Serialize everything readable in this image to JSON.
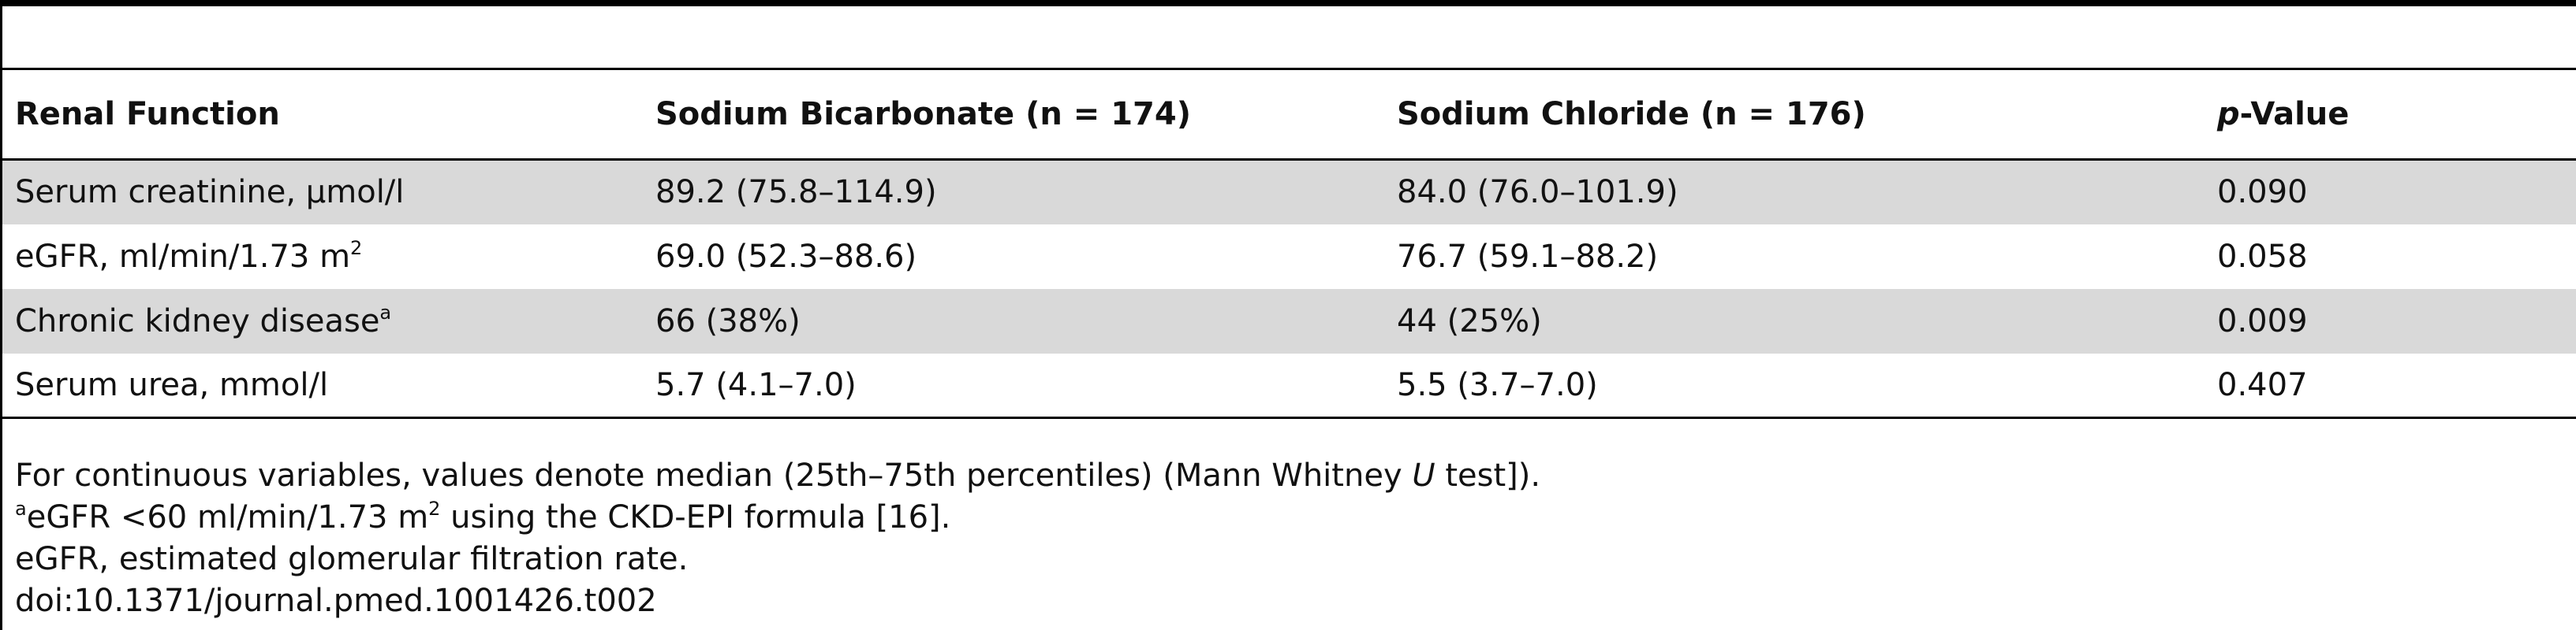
{
  "table": {
    "headers": {
      "renal_function": "Renal Function",
      "bicarbonate": "Sodium Bicarbonate (n = 174)",
      "chloride": "Sodium Chloride (n = 176)",
      "pvalue_prefix": "p",
      "pvalue_suffix": "-Value"
    },
    "rows": [
      {
        "label": "Serum creatinine, µmol/l",
        "label_sup": "",
        "bicarbonate": "89.2 (75.8–114.9)",
        "chloride": "84.0 (76.0–101.9)",
        "p": "0.090"
      },
      {
        "label": "eGFR, ml/min/1.73 m",
        "label_sup": "2",
        "bicarbonate": "69.0 (52.3–88.6)",
        "chloride": "76.7 (59.1–88.2)",
        "p": "0.058"
      },
      {
        "label": "Chronic kidney disease",
        "label_sup": "a",
        "bicarbonate": "66 (38%)",
        "chloride": "44 (25%)",
        "p": "0.009"
      },
      {
        "label": "Serum urea, mmol/l",
        "label_sup": "",
        "bicarbonate": "5.7 (4.1–7.0)",
        "chloride": "5.5 (3.7–7.0)",
        "p": "0.407"
      }
    ]
  },
  "footnotes": {
    "line1_pre": "For continuous variables, values denote median (25th–75th percentiles) (Mann Whitney ",
    "line1_ital": "U",
    "line1_post": " test]).",
    "line2_sup": "a",
    "line2_text": "eGFR <60 ml/min/1.73 m",
    "line2_sup2": "2",
    "line2_post": " using the CKD-EPI formula [16].",
    "line3": "eGFR, estimated glomerular filtration rate.",
    "line4": "doi:10.1371/journal.pmed.1001426.t002"
  }
}
